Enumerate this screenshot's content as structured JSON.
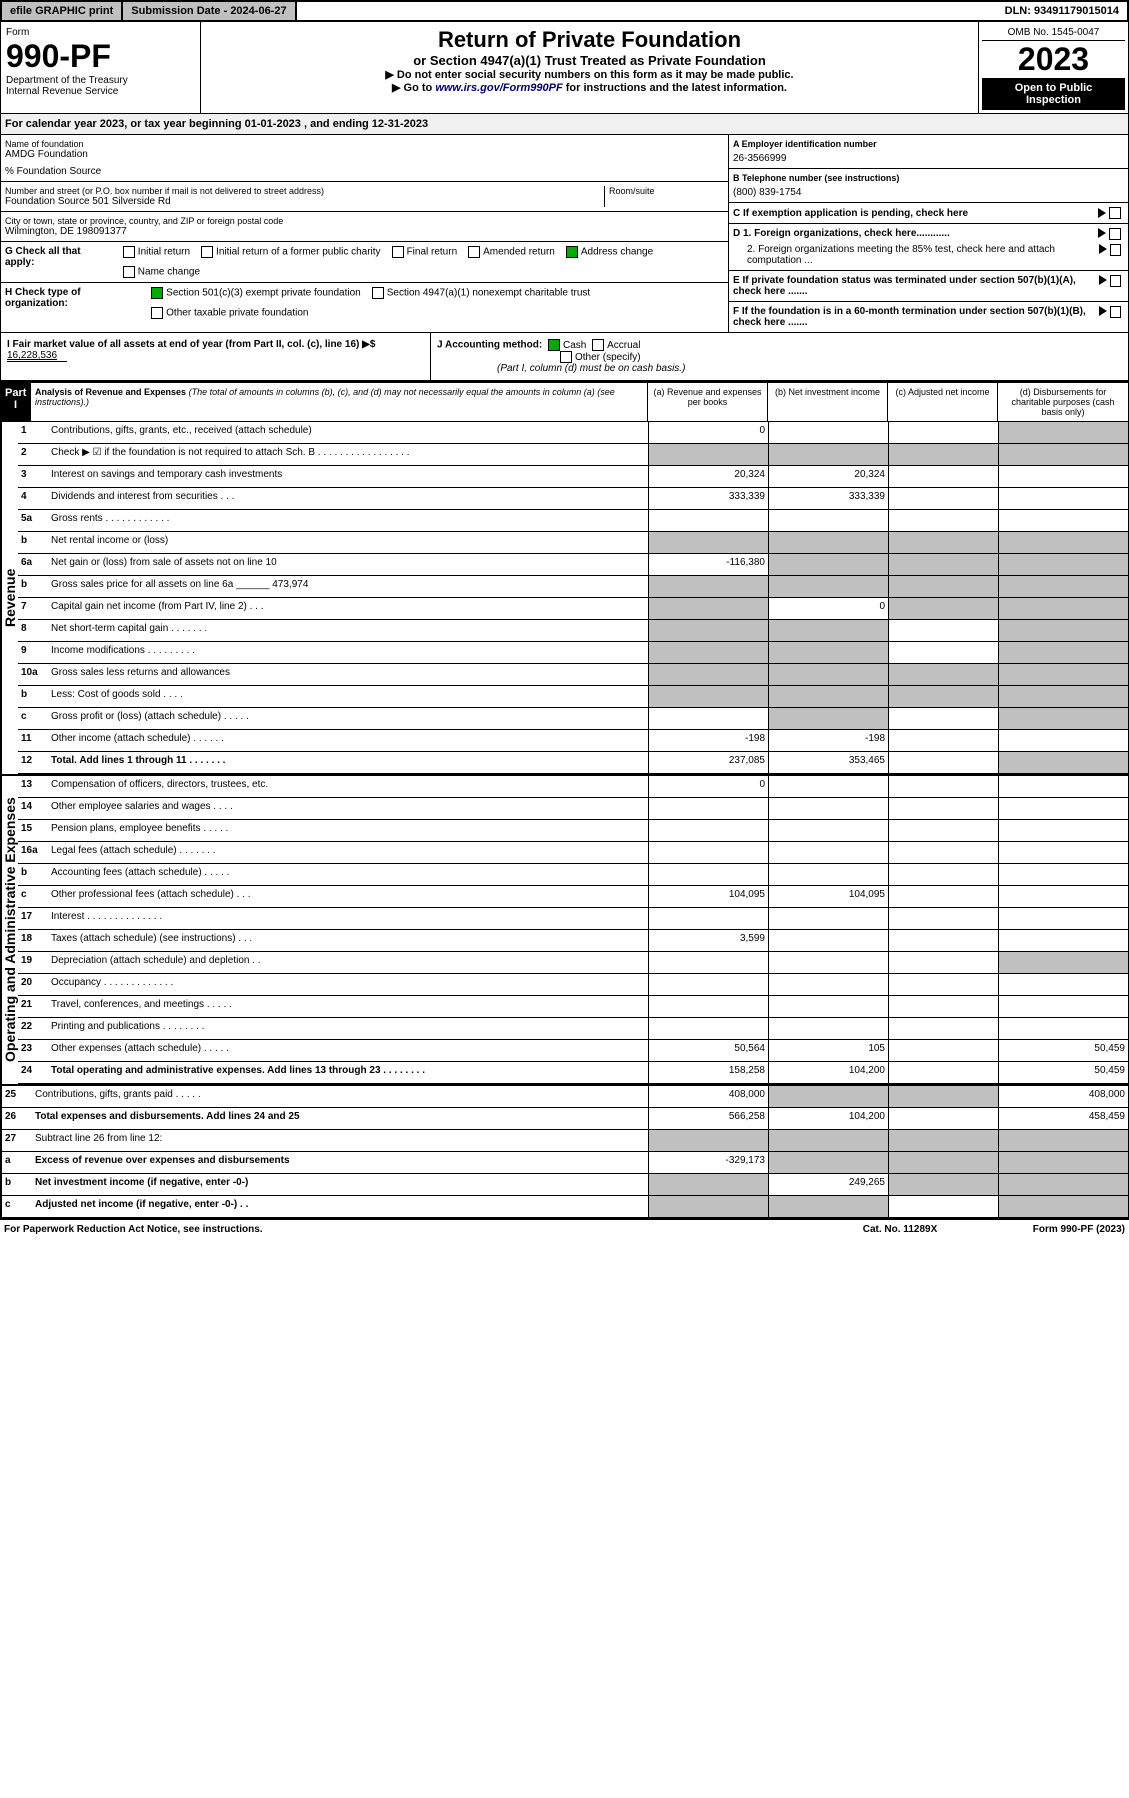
{
  "topbar": {
    "efile": "efile GRAPHIC print",
    "submission": "Submission Date - 2024-06-27",
    "dln": "DLN: 93491179015014"
  },
  "header": {
    "form": "Form",
    "formnum": "990-PF",
    "dept": "Department of the Treasury\nInternal Revenue Service",
    "title": "Return of Private Foundation",
    "subtitle1": "or Section 4947(a)(1) Trust Treated as Private Foundation",
    "subtitle2": "▶ Do not enter social security numbers on this form as it may be made public.",
    "subtitle3": "▶ Go to www.irs.gov/Form990PF for instructions and the latest information.",
    "link": "www.irs.gov/Form990PF",
    "omb": "OMB No. 1545-0047",
    "year": "2023",
    "open": "Open to Public Inspection"
  },
  "calyear": "For calendar year 2023, or tax year beginning 01-01-2023             , and ending 12-31-2023",
  "info": {
    "name_lbl": "Name of foundation",
    "name": "AMDG Foundation",
    "pct": "% Foundation Source",
    "addr_lbl": "Number and street (or P.O. box number if mail is not delivered to street address)",
    "addr": "Foundation Source 501 Silverside Rd",
    "room_lbl": "Room/suite",
    "city_lbl": "City or town, state or province, country, and ZIP or foreign postal code",
    "city": "Wilmington, DE  198091377",
    "a_lbl": "A Employer identification number",
    "a_val": "26-3566999",
    "b_lbl": "B Telephone number (see instructions)",
    "b_val": "(800) 839-1754",
    "c_lbl": "C If exemption application is pending, check here",
    "d1_lbl": "D 1. Foreign organizations, check here............",
    "d2_lbl": "2. Foreign organizations meeting the 85% test, check here and attach computation ...",
    "e_lbl": "E If private foundation status was terminated under section 507(b)(1)(A), check here .......",
    "f_lbl": "F If the foundation is in a 60-month termination under section 507(b)(1)(B), check here .......",
    "g_lbl": "G Check all that apply:",
    "g_opts": [
      "Initial return",
      "Initial return of a former public charity",
      "Final return",
      "Amended return",
      "Address change",
      "Name change"
    ],
    "h_lbl": "H Check type of organization:",
    "h_opts": [
      "Section 501(c)(3) exempt private foundation",
      "Section 4947(a)(1) nonexempt charitable trust",
      "Other taxable private foundation"
    ],
    "i_lbl": "I Fair market value of all assets at end of year (from Part II, col. (c), line 16) ▶$",
    "i_val": "16,228,536",
    "j_lbl": "J Accounting method:",
    "j_opts": [
      "Cash",
      "Accrual",
      "Other (specify)"
    ],
    "j_note": "(Part I, column (d) must be on cash basis.)"
  },
  "part1": {
    "label": "Part I",
    "title": "Analysis of Revenue and Expenses",
    "note": "(The total of amounts in columns (b), (c), and (d) may not necessarily equal the amounts in column (a) (see instructions).)",
    "cols": {
      "a": "(a) Revenue and expenses per books",
      "b": "(b) Net investment income",
      "c": "(c) Adjusted net income",
      "d": "(d) Disbursements for charitable purposes (cash basis only)"
    }
  },
  "side_labels": {
    "revenue": "Revenue",
    "expenses": "Operating and Administrative Expenses"
  },
  "rows": [
    {
      "n": "1",
      "l": "Contributions, gifts, grants, etc., received (attach schedule)",
      "a": "0",
      "d_shade": true
    },
    {
      "n": "2",
      "l": "Check ▶ ☑ if the foundation is not required to attach Sch. B  . . . . . . . . . . . . . . . . .",
      "noinput": true,
      "shade_all": true
    },
    {
      "n": "3",
      "l": "Interest on savings and temporary cash investments",
      "a": "20,324",
      "b": "20,324"
    },
    {
      "n": "4",
      "l": "Dividends and interest from securities  . . .",
      "a": "333,339",
      "b": "333,339"
    },
    {
      "n": "5a",
      "l": "Gross rents  . . . . . . . . . . . ."
    },
    {
      "n": "b",
      "l": "Net rental income or (loss)",
      "b_shade": true,
      "c_shade": true,
      "d_shade": true,
      "a_shade": true
    },
    {
      "n": "6a",
      "l": "Net gain or (loss) from sale of assets not on line 10",
      "a": "-116,380",
      "b_shade": true,
      "c_shade": true,
      "d_shade": true
    },
    {
      "n": "b",
      "l": "Gross sales price for all assets on line 6a ______ 473,974",
      "a_shade": true,
      "b_shade": true,
      "c_shade": true,
      "d_shade": true
    },
    {
      "n": "7",
      "l": "Capital gain net income (from Part IV, line 2)  . . .",
      "a_shade": true,
      "b": "0",
      "c_shade": true,
      "d_shade": true
    },
    {
      "n": "8",
      "l": "Net short-term capital gain  . . . . . . .",
      "a_shade": true,
      "b_shade": true,
      "d_shade": true
    },
    {
      "n": "9",
      "l": "Income modifications  . . . . . . . . .",
      "a_shade": true,
      "b_shade": true,
      "d_shade": true
    },
    {
      "n": "10a",
      "l": "Gross sales less returns and allowances",
      "a_shade": true,
      "b_shade": true,
      "c_shade": true,
      "d_shade": true
    },
    {
      "n": "b",
      "l": "Less: Cost of goods sold  . . . .",
      "a_shade": true,
      "b_shade": true,
      "c_shade": true,
      "d_shade": true
    },
    {
      "n": "c",
      "l": "Gross profit or (loss) (attach schedule)  . . . . .",
      "b_shade": true,
      "d_shade": true
    },
    {
      "n": "11",
      "l": "Other income (attach schedule)  . . . . . .",
      "a": "-198",
      "b": "-198"
    },
    {
      "n": "12",
      "l": "Total. Add lines 1 through 11  . . . . . . .",
      "bold": true,
      "a": "237,085",
      "b": "353,465",
      "d_shade": true
    },
    {
      "n": "13",
      "l": "Compensation of officers, directors, trustees, etc.",
      "a": "0"
    },
    {
      "n": "14",
      "l": "Other employee salaries and wages  . . . ."
    },
    {
      "n": "15",
      "l": "Pension plans, employee benefits  . . . . ."
    },
    {
      "n": "16a",
      "l": "Legal fees (attach schedule)  . . . . . . ."
    },
    {
      "n": "b",
      "l": "Accounting fees (attach schedule)  . . . . ."
    },
    {
      "n": "c",
      "l": "Other professional fees (attach schedule)  . . .",
      "a": "104,095",
      "b": "104,095"
    },
    {
      "n": "17",
      "l": "Interest  . . . . . . . . . . . . . ."
    },
    {
      "n": "18",
      "l": "Taxes (attach schedule) (see instructions)  . . .",
      "a": "3,599"
    },
    {
      "n": "19",
      "l": "Depreciation (attach schedule) and depletion  . .",
      "d_shade": true
    },
    {
      "n": "20",
      "l": "Occupancy  . . . . . . . . . . . . ."
    },
    {
      "n": "21",
      "l": "Travel, conferences, and meetings  . . . . ."
    },
    {
      "n": "22",
      "l": "Printing and publications  . . . . . . . ."
    },
    {
      "n": "23",
      "l": "Other expenses (attach schedule)  . . . . .",
      "a": "50,564",
      "b": "105",
      "d": "50,459"
    },
    {
      "n": "24",
      "l": "Total operating and administrative expenses. Add lines 13 through 23  . . . . . . . .",
      "bold": true,
      "a": "158,258",
      "b": "104,200",
      "d": "50,459"
    },
    {
      "n": "25",
      "l": "Contributions, gifts, grants paid  . . . . .",
      "a": "408,000",
      "b_shade": true,
      "c_shade": true,
      "d": "408,000"
    },
    {
      "n": "26",
      "l": "Total expenses and disbursements. Add lines 24 and 25",
      "bold": true,
      "a": "566,258",
      "b": "104,200",
      "d": "458,459"
    },
    {
      "n": "27",
      "l": "Subtract line 26 from line 12:",
      "a_shade": true,
      "b_shade": true,
      "c_shade": true,
      "d_shade": true
    },
    {
      "n": "a",
      "l": "Excess of revenue over expenses and disbursements",
      "bold": true,
      "a": "-329,173",
      "b_shade": true,
      "c_shade": true,
      "d_shade": true
    },
    {
      "n": "b",
      "l": "Net investment income (if negative, enter -0-)",
      "bold": true,
      "a_shade": true,
      "b": "249,265",
      "c_shade": true,
      "d_shade": true
    },
    {
      "n": "c",
      "l": "Adjusted net income (if negative, enter -0-)  . .",
      "bold": true,
      "a_shade": true,
      "b_shade": true,
      "d_shade": true
    }
  ],
  "footer": {
    "left": "For Paperwork Reduction Act Notice, see instructions.",
    "mid": "Cat. No. 11289X",
    "right": "Form 990-PF (2023)"
  }
}
